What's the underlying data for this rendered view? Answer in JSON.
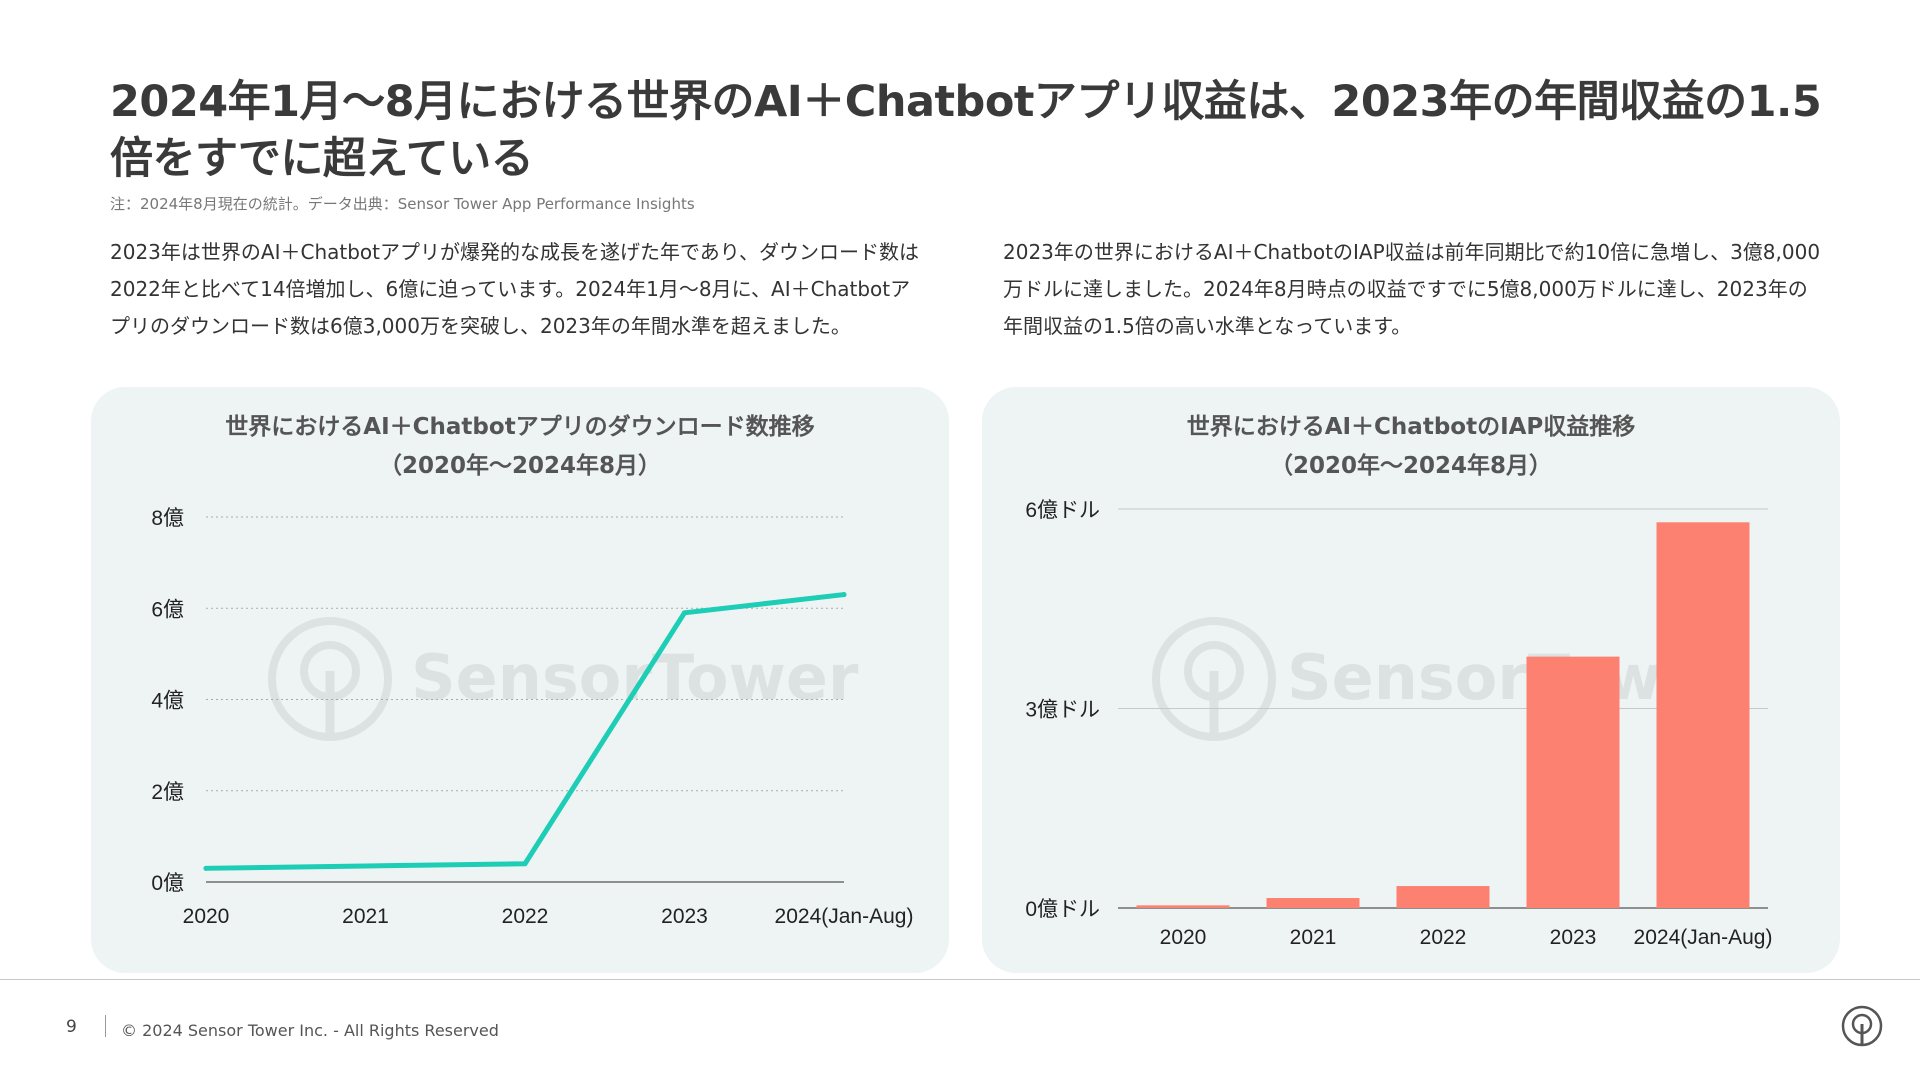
{
  "title": "2024年1月〜8月における世界のAI＋Chatbotアプリ収益は、2023年の年間収益の1.5倍をすでに超えている",
  "note": "注：2024年8月現在の統計。データ出典：Sensor Tower App Performance Insights",
  "description_left": "2023年は世界のAI＋Chatbotアプリが爆発的な成長を遂げた年であり、ダウンロード数は2022年と比べて14倍増加し、6億に迫っています。2024年1月〜8月に、AI＋Chatbotアプリのダウンロード数は6億3,000万を突破し、2023年の年間水準を超えました。",
  "description_right": "2023年の世界におけるAI＋ChatbotのIAP収益は前年同期比で約10倍に急増し、3億8,000万ドルに達しました。2024年8月時点の収益ですでに5億8,000万ドルに達し、2023年の年間収益の1.5倍の高い水準となっています。",
  "watermark": "SensorTower",
  "footer": {
    "page_number": "9",
    "copyright": "© 2024 Sensor Tower Inc. - All Rights Reserved"
  },
  "colors": {
    "line": "#1ecdb5",
    "bar": "#fd8170",
    "panel_bg": "#eef4f4"
  },
  "chart_data": [
    {
      "type": "line",
      "title": "世界におけるAI＋Chatbotアプリのダウンロード数推移",
      "subtitle": "（2020年〜2024年8月）",
      "categories": [
        "2020",
        "2021",
        "2022",
        "2023",
        "2024(Jan-Aug)"
      ],
      "series": [
        {
          "values": [
            0.3,
            0.35,
            0.4,
            5.9,
            6.3
          ]
        }
      ],
      "y_ticks": [
        0,
        2,
        4,
        6,
        8
      ],
      "y_tick_labels": [
        "0億",
        "2億",
        "4億",
        "6億",
        "8億"
      ],
      "ylim": [
        0,
        8
      ],
      "grid": "dotted",
      "legend": "none"
    },
    {
      "type": "bar",
      "title": "世界におけるAI＋ChatbotのIAP収益推移",
      "subtitle": "（2020年〜2024年8月）",
      "categories": [
        "2020",
        "2021",
        "2022",
        "2023",
        "2024(Jan-Aug)"
      ],
      "series": [
        {
          "values": [
            0.04,
            0.15,
            0.33,
            3.78,
            5.8
          ]
        }
      ],
      "y_ticks": [
        0,
        3,
        6
      ],
      "y_tick_labels": [
        "0億ドル",
        "3億ドル",
        "6億ドル"
      ],
      "ylim": [
        0,
        6
      ],
      "grid": "solid",
      "legend": "none"
    }
  ]
}
